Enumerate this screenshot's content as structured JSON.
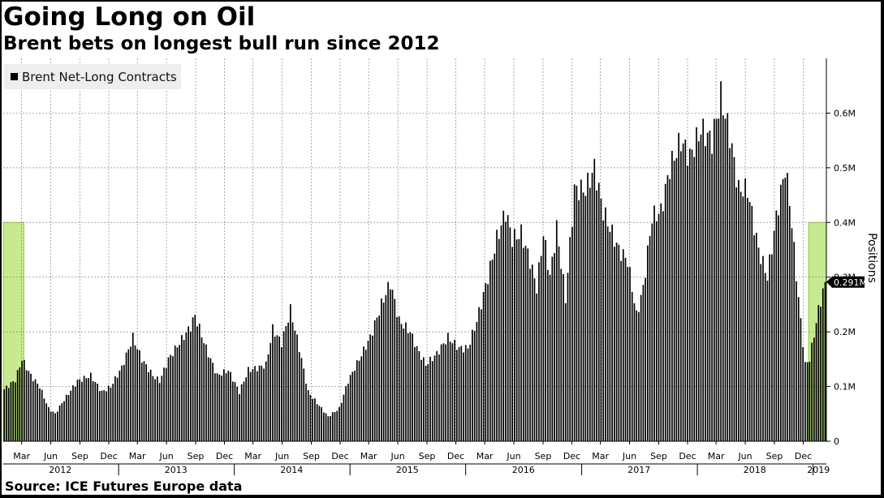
{
  "header": {
    "title": "Going Long on Oil",
    "subtitle": "Brent bets on longest bull run since 2012"
  },
  "footer": {
    "source": "Source: ICE Futures Europe data"
  },
  "colors": {
    "bar": "#000000",
    "highlight": "#c6ea8f",
    "highlight_border": "#8fce3a",
    "grid": "#888888"
  },
  "chart_data": {
    "type": "bar",
    "series": [
      {
        "name": "Brent Net-Long Contracts",
        "unit": "M"
      }
    ],
    "ylabel": "Positions",
    "ylim": [
      0,
      0.7
    ],
    "yticks": [
      0,
      0.1,
      0.2,
      0.3,
      0.4,
      0.5,
      0.6
    ],
    "ytick_labels": [
      "0",
      "0.1M",
      "0.2M",
      "0.3M",
      "0.4M",
      "0.5M",
      "0.6M"
    ],
    "last_value_label": "0.291M",
    "last_value": 0.291,
    "grid": true,
    "legend_position": "top-left",
    "x_start": "2012-01-03",
    "x_end": "2019-02-05",
    "month_ticks": [
      {
        "label": "Mar",
        "date": "2012-03-01"
      },
      {
        "label": "Jun",
        "date": "2012-06-01"
      },
      {
        "label": "Sep",
        "date": "2012-09-01"
      },
      {
        "label": "Dec",
        "date": "2012-12-01"
      },
      {
        "label": "Mar",
        "date": "2013-03-01"
      },
      {
        "label": "Jun",
        "date": "2013-06-01"
      },
      {
        "label": "Sep",
        "date": "2013-09-01"
      },
      {
        "label": "Dec",
        "date": "2013-12-01"
      },
      {
        "label": "Mar",
        "date": "2014-03-01"
      },
      {
        "label": "Jun",
        "date": "2014-06-01"
      },
      {
        "label": "Sep",
        "date": "2014-09-01"
      },
      {
        "label": "Dec",
        "date": "2014-12-01"
      },
      {
        "label": "Mar",
        "date": "2015-03-01"
      },
      {
        "label": "Jun",
        "date": "2015-06-01"
      },
      {
        "label": "Sep",
        "date": "2015-09-01"
      },
      {
        "label": "Dec",
        "date": "2015-12-01"
      },
      {
        "label": "Mar",
        "date": "2016-03-01"
      },
      {
        "label": "Jun",
        "date": "2016-06-01"
      },
      {
        "label": "Sep",
        "date": "2016-09-01"
      },
      {
        "label": "Dec",
        "date": "2016-12-01"
      },
      {
        "label": "Mar",
        "date": "2017-03-01"
      },
      {
        "label": "Jun",
        "date": "2017-06-01"
      },
      {
        "label": "Sep",
        "date": "2017-09-01"
      },
      {
        "label": "Dec",
        "date": "2017-12-01"
      },
      {
        "label": "Mar",
        "date": "2018-03-01"
      },
      {
        "label": "Jun",
        "date": "2018-06-01"
      },
      {
        "label": "Sep",
        "date": "2018-09-01"
      },
      {
        "label": "Dec",
        "date": "2018-12-01"
      }
    ],
    "year_labels": [
      {
        "label": "2012",
        "date": "2012-07-01"
      },
      {
        "label": "2013",
        "date": "2013-07-01"
      },
      {
        "label": "2014",
        "date": "2014-07-01"
      },
      {
        "label": "2015",
        "date": "2015-07-01"
      },
      {
        "label": "2016",
        "date": "2016-07-01"
      },
      {
        "label": "2017",
        "date": "2017-07-01"
      },
      {
        "label": "2018",
        "date": "2018-07-01"
      },
      {
        "label": "2019",
        "date": "2019-01-18"
      }
    ],
    "highlights": [
      {
        "from": "2012-01-03",
        "to": "2012-03-01",
        "value": 0.4
      },
      {
        "from": "2018-12-18",
        "to": "2019-02-05",
        "value": 0.4
      }
    ],
    "weekly_keypoints": [
      {
        "date": "2012-01-03",
        "value": 0.095
      },
      {
        "date": "2012-02-07",
        "value": 0.112
      },
      {
        "date": "2012-02-28",
        "value": 0.15
      },
      {
        "date": "2012-03-27",
        "value": 0.12
      },
      {
        "date": "2012-04-24",
        "value": 0.1
      },
      {
        "date": "2012-05-22",
        "value": 0.06
      },
      {
        "date": "2012-06-12",
        "value": 0.05
      },
      {
        "date": "2012-07-03",
        "value": 0.07
      },
      {
        "date": "2012-08-21",
        "value": 0.11
      },
      {
        "date": "2012-10-02",
        "value": 0.12
      },
      {
        "date": "2012-11-06",
        "value": 0.09
      },
      {
        "date": "2012-12-04",
        "value": 0.1
      },
      {
        "date": "2013-01-08",
        "value": 0.135
      },
      {
        "date": "2013-02-12",
        "value": 0.19
      },
      {
        "date": "2013-03-12",
        "value": 0.15
      },
      {
        "date": "2013-04-16",
        "value": 0.12
      },
      {
        "date": "2013-05-07",
        "value": 0.11
      },
      {
        "date": "2013-06-04",
        "value": 0.15
      },
      {
        "date": "2013-07-09",
        "value": 0.18
      },
      {
        "date": "2013-08-13",
        "value": 0.21
      },
      {
        "date": "2013-08-27",
        "value": 0.23
      },
      {
        "date": "2013-10-01",
        "value": 0.17
      },
      {
        "date": "2013-11-05",
        "value": 0.12
      },
      {
        "date": "2013-12-10",
        "value": 0.13
      },
      {
        "date": "2014-01-14",
        "value": 0.09
      },
      {
        "date": "2014-02-11",
        "value": 0.13
      },
      {
        "date": "2014-03-18",
        "value": 0.135
      },
      {
        "date": "2014-04-08",
        "value": 0.14
      },
      {
        "date": "2014-04-29",
        "value": 0.205
      },
      {
        "date": "2014-05-27",
        "value": 0.18
      },
      {
        "date": "2014-06-24",
        "value": 0.24
      },
      {
        "date": "2014-07-22",
        "value": 0.17
      },
      {
        "date": "2014-08-19",
        "value": 0.09
      },
      {
        "date": "2014-09-30",
        "value": 0.06
      },
      {
        "date": "2014-10-21",
        "value": 0.045
      },
      {
        "date": "2014-11-25",
        "value": 0.06
      },
      {
        "date": "2014-12-23",
        "value": 0.11
      },
      {
        "date": "2015-01-27",
        "value": 0.15
      },
      {
        "date": "2015-03-03",
        "value": 0.19
      },
      {
        "date": "2015-04-07",
        "value": 0.25
      },
      {
        "date": "2015-05-05",
        "value": 0.29
      },
      {
        "date": "2015-06-02",
        "value": 0.22
      },
      {
        "date": "2015-07-07",
        "value": 0.2
      },
      {
        "date": "2015-07-28",
        "value": 0.17
      },
      {
        "date": "2015-08-25",
        "value": 0.14
      },
      {
        "date": "2015-09-29",
        "value": 0.16
      },
      {
        "date": "2015-11-03",
        "value": 0.19
      },
      {
        "date": "2015-12-08",
        "value": 0.17
      },
      {
        "date": "2016-01-05",
        "value": 0.17
      },
      {
        "date": "2016-02-02",
        "value": 0.22
      },
      {
        "date": "2016-03-08",
        "value": 0.3
      },
      {
        "date": "2016-04-05",
        "value": 0.37
      },
      {
        "date": "2016-05-03",
        "value": 0.42
      },
      {
        "date": "2016-05-24",
        "value": 0.37
      },
      {
        "date": "2016-06-21",
        "value": 0.38
      },
      {
        "date": "2016-07-19",
        "value": 0.33
      },
      {
        "date": "2016-08-09",
        "value": 0.28
      },
      {
        "date": "2016-08-30",
        "value": 0.38
      },
      {
        "date": "2016-09-20",
        "value": 0.3
      },
      {
        "date": "2016-10-11",
        "value": 0.39
      },
      {
        "date": "2016-11-08",
        "value": 0.26
      },
      {
        "date": "2016-12-06",
        "value": 0.46
      },
      {
        "date": "2017-01-10",
        "value": 0.46
      },
      {
        "date": "2017-02-07",
        "value": 0.5
      },
      {
        "date": "2017-03-07",
        "value": 0.42
      },
      {
        "date": "2017-04-04",
        "value": 0.38
      },
      {
        "date": "2017-04-25",
        "value": 0.35
      },
      {
        "date": "2017-05-23",
        "value": 0.33
      },
      {
        "date": "2017-06-20",
        "value": 0.23
      },
      {
        "date": "2017-07-11",
        "value": 0.28
      },
      {
        "date": "2017-08-08",
        "value": 0.41
      },
      {
        "date": "2017-09-05",
        "value": 0.42
      },
      {
        "date": "2017-10-03",
        "value": 0.5
      },
      {
        "date": "2017-11-07",
        "value": 0.55
      },
      {
        "date": "2017-12-05",
        "value": 0.52
      },
      {
        "date": "2018-01-09",
        "value": 0.57
      },
      {
        "date": "2018-02-13",
        "value": 0.55
      },
      {
        "date": "2018-03-13",
        "value": 0.63
      },
      {
        "date": "2018-04-10",
        "value": 0.56
      },
      {
        "date": "2018-05-08",
        "value": 0.46
      },
      {
        "date": "2018-06-05",
        "value": 0.46
      },
      {
        "date": "2018-07-10",
        "value": 0.35
      },
      {
        "date": "2018-08-07",
        "value": 0.3
      },
      {
        "date": "2018-09-04",
        "value": 0.41
      },
      {
        "date": "2018-10-02",
        "value": 0.5
      },
      {
        "date": "2018-10-16",
        "value": 0.44
      },
      {
        "date": "2018-11-13",
        "value": 0.26
      },
      {
        "date": "2018-12-04",
        "value": 0.14
      },
      {
        "date": "2018-12-18",
        "value": 0.15
      },
      {
        "date": "2019-01-15",
        "value": 0.24
      },
      {
        "date": "2019-02-05",
        "value": 0.291
      }
    ]
  }
}
